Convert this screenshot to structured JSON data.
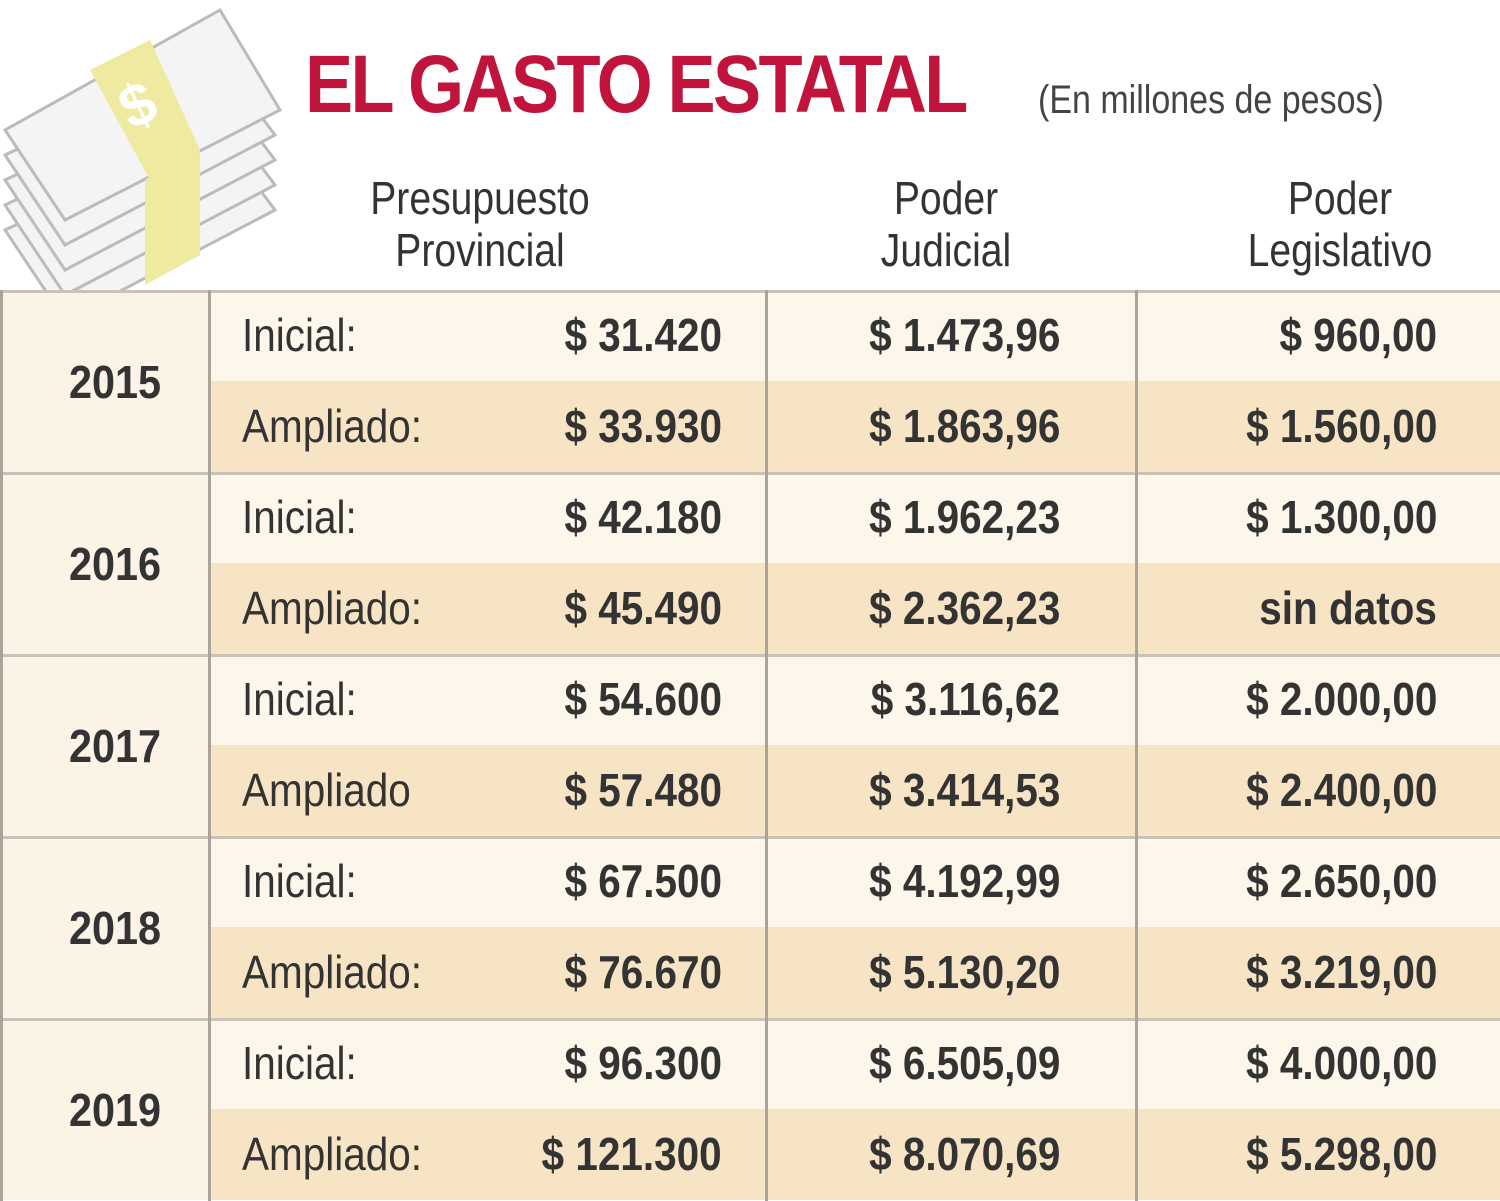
{
  "header": {
    "title": "EL GASTO ESTATAL",
    "subtitle": "(En millones de pesos)"
  },
  "table": {
    "columns": [
      [
        "Presupuesto",
        "Provincial"
      ],
      [
        "Poder",
        "Judicial"
      ],
      [
        "Poder",
        "Legislativo"
      ]
    ],
    "rows": [
      {
        "year": "2015",
        "lines": [
          [
            "Inicial:",
            "$ 31.420",
            "$ 1.473,96",
            "$ 960,00"
          ],
          [
            "Ampliado:",
            "$ 33.930",
            "$ 1.863,96",
            "$ 1.560,00"
          ]
        ]
      },
      {
        "year": "2016",
        "lines": [
          [
            "Inicial:",
            "$ 42.180",
            "$ 1.962,23",
            "$ 1.300,00"
          ],
          [
            "Ampliado:",
            "$ 45.490",
            "$ 2.362,23",
            "sin datos"
          ]
        ]
      },
      {
        "year": "2017",
        "lines": [
          [
            "Inicial:",
            "$ 54.600",
            "$ 3.116,62",
            "$ 2.000,00"
          ],
          [
            "Ampliado",
            "$ 57.480",
            "$ 3.414,53",
            "$ 2.400,00"
          ]
        ]
      },
      {
        "year": "2018",
        "lines": [
          [
            "Inicial:",
            "$ 67.500",
            "$ 4.192,99",
            "$ 2.650,00"
          ],
          [
            "Ampliado:",
            "$ 76.670",
            "$ 5.130,20",
            "$ 3.219,00"
          ]
        ]
      },
      {
        "year": "2019",
        "lines": [
          [
            "Inicial:",
            "$ 96.300",
            "$ 6.505,09",
            "$ 4.000,00"
          ],
          [
            "Ampliado:",
            "$ 121.300",
            "$ 8.070,69",
            "$ 5.298,00"
          ]
        ]
      }
    ]
  }
}
